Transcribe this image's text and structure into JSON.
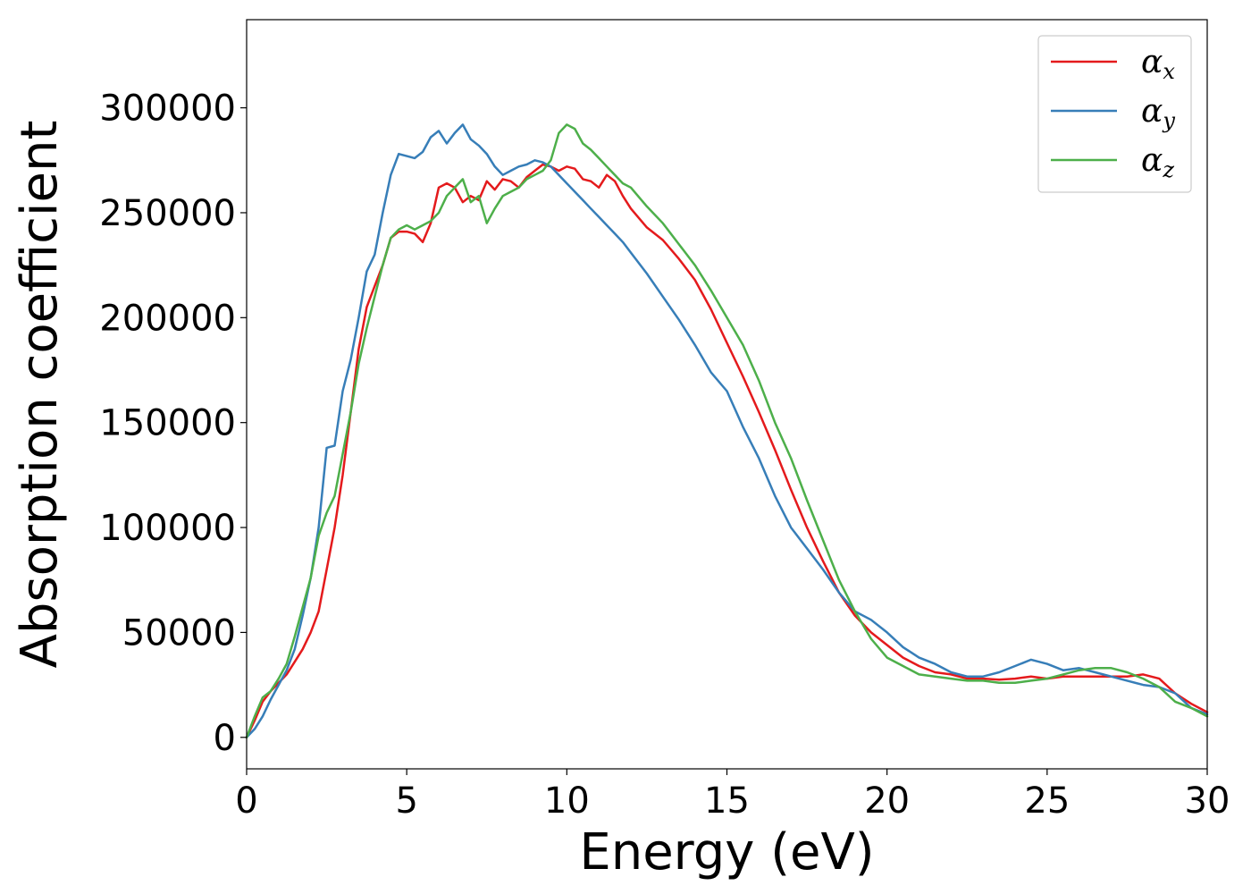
{
  "chart_data": {
    "type": "line",
    "title": "",
    "xlabel": "Energy (eV)",
    "ylabel": "Absorption coefficient",
    "xlim": [
      0,
      30
    ],
    "ylim": [
      -15000,
      342000
    ],
    "xticks": [
      0,
      5,
      10,
      15,
      20,
      25,
      30
    ],
    "yticks": [
      0,
      50000,
      100000,
      150000,
      200000,
      250000,
      300000
    ],
    "grid": false,
    "legend_position": "top-right",
    "x": [
      0,
      0.25,
      0.5,
      0.75,
      1,
      1.25,
      1.5,
      1.75,
      2,
      2.25,
      2.5,
      2.75,
      3,
      3.25,
      3.5,
      3.75,
      4,
      4.25,
      4.5,
      4.75,
      5,
      5.25,
      5.5,
      5.75,
      6,
      6.25,
      6.5,
      6.75,
      7,
      7.25,
      7.5,
      7.75,
      8,
      8.25,
      8.5,
      8.75,
      9,
      9.25,
      9.5,
      9.75,
      10,
      10.25,
      10.5,
      10.75,
      11,
      11.25,
      11.5,
      11.75,
      12,
      12.5,
      13,
      13.5,
      14,
      14.5,
      15,
      15.5,
      16,
      16.5,
      17,
      17.5,
      18,
      18.5,
      19,
      19.5,
      20,
      20.5,
      21,
      21.5,
      22,
      22.5,
      23,
      23.5,
      24,
      24.5,
      25,
      25.5,
      26,
      26.5,
      27,
      27.5,
      28,
      28.5,
      29,
      29.5,
      30
    ],
    "series": [
      {
        "name": "αx",
        "label_base": "α",
        "label_sub": "x",
        "color": "#e41a1c",
        "values": [
          0,
          8000,
          17000,
          22000,
          26000,
          30000,
          36000,
          42000,
          50000,
          60000,
          80000,
          100000,
          125000,
          155000,
          185000,
          205000,
          215000,
          225000,
          238000,
          241000,
          241000,
          240000,
          236000,
          245000,
          262000,
          264000,
          262000,
          255000,
          258000,
          256000,
          265000,
          261000,
          266000,
          265000,
          262000,
          267000,
          270000,
          273000,
          272000,
          270000,
          272000,
          271000,
          266000,
          265000,
          262000,
          268000,
          265000,
          258000,
          252000,
          243000,
          237000,
          228000,
          218000,
          204000,
          188000,
          172000,
          155000,
          137000,
          118000,
          100000,
          84000,
          69000,
          58000,
          50000,
          44000,
          38000,
          34000,
          31000,
          30000,
          28000,
          28000,
          27500,
          28000,
          29000,
          28000,
          29000,
          29000,
          29000,
          29000,
          29000,
          30000,
          28000,
          21000,
          16000,
          12000
        ]
      },
      {
        "name": "αy",
        "label_base": "α",
        "label_sub": "y",
        "color": "#377eb8",
        "values": [
          0,
          4000,
          10000,
          18000,
          25000,
          32000,
          42000,
          58000,
          76000,
          100000,
          138000,
          139000,
          165000,
          180000,
          200000,
          222000,
          230000,
          250000,
          268000,
          278000,
          277000,
          276000,
          279000,
          286000,
          289000,
          283000,
          288000,
          292000,
          285000,
          282000,
          278000,
          272000,
          268000,
          270000,
          272000,
          273000,
          275000,
          274000,
          272000,
          268000,
          264000,
          260000,
          256000,
          252000,
          248000,
          244000,
          240000,
          236000,
          231000,
          221000,
          210000,
          199000,
          187000,
          174000,
          165000,
          148000,
          133000,
          115000,
          100000,
          90000,
          80000,
          69000,
          60000,
          56000,
          50000,
          43000,
          38000,
          35000,
          31000,
          29000,
          29000,
          31000,
          34000,
          37000,
          35000,
          32000,
          33000,
          31000,
          29000,
          27000,
          25000,
          24000,
          21000,
          14000,
          11000
        ]
      },
      {
        "name": "αz",
        "label_base": "α",
        "label_sub": "z",
        "color": "#4daf4a",
        "values": [
          0,
          10000,
          19000,
          22000,
          28000,
          35000,
          48000,
          62000,
          76000,
          96000,
          107000,
          115000,
          135000,
          155000,
          178000,
          195000,
          210000,
          225000,
          238000,
          242000,
          244000,
          242000,
          244000,
          246000,
          250000,
          258000,
          262000,
          266000,
          255000,
          258000,
          245000,
          252000,
          258000,
          260000,
          262000,
          266000,
          268000,
          270000,
          275000,
          288000,
          292000,
          290000,
          283000,
          280000,
          276000,
          272000,
          268000,
          264000,
          262000,
          253000,
          245000,
          235000,
          225000,
          213000,
          200000,
          187000,
          170000,
          150000,
          133000,
          113000,
          94000,
          75000,
          60000,
          47000,
          38000,
          34000,
          30000,
          29000,
          28000,
          27000,
          27000,
          26000,
          26000,
          27000,
          28000,
          30000,
          32000,
          33000,
          33000,
          31000,
          28000,
          24000,
          17000,
          14000,
          10000
        ]
      }
    ]
  }
}
